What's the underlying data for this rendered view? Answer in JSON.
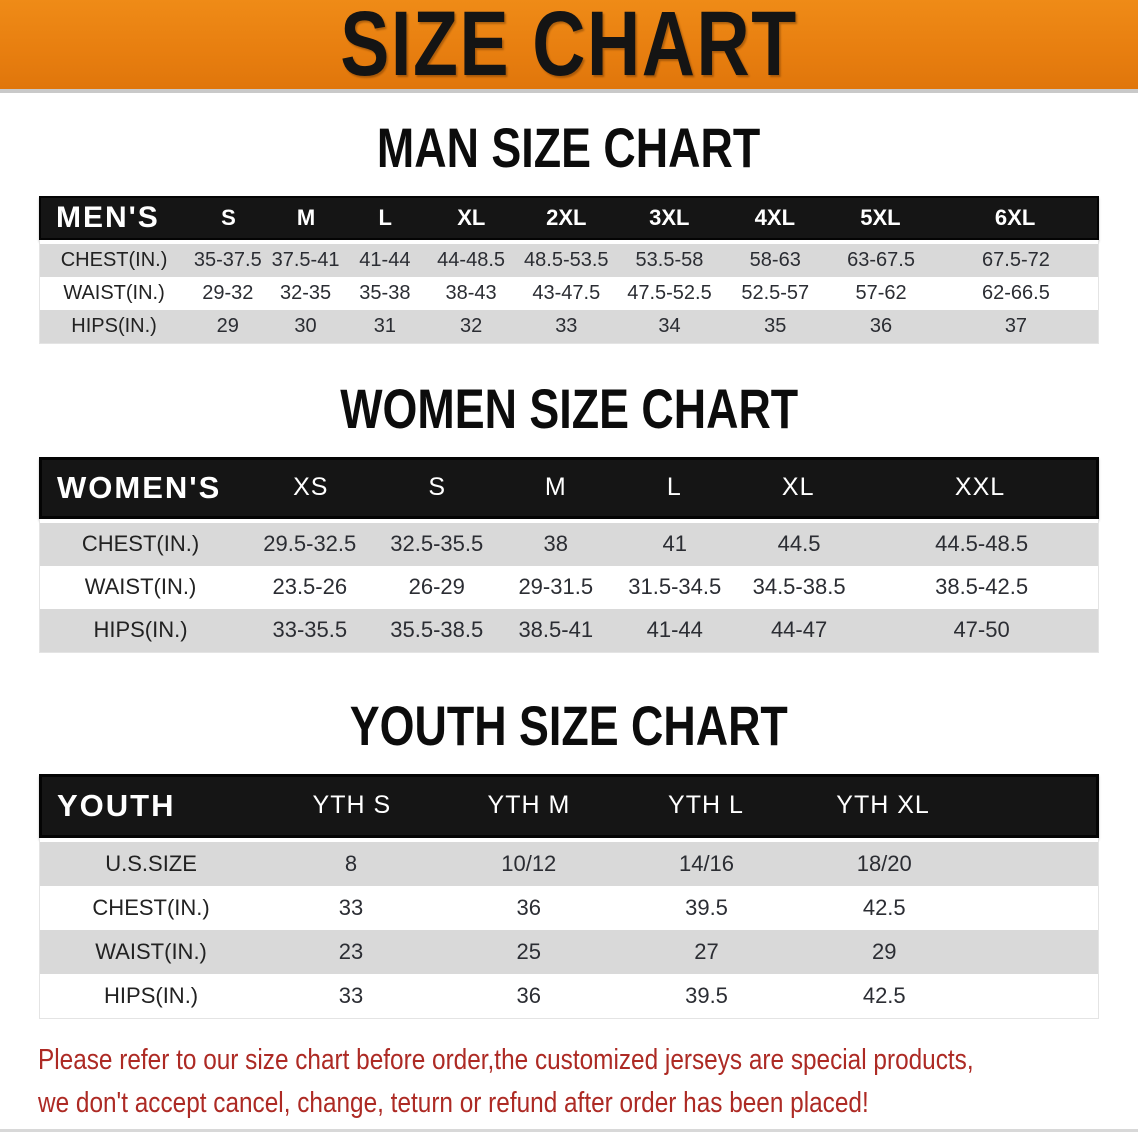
{
  "banner": {
    "title": "SIZE CHART",
    "bg_color": "#E8800F",
    "text_color": "#141414"
  },
  "colors": {
    "table_header_bg": "#151515",
    "table_header_text": "#FFFFFF",
    "row_stripe_gray": "#D9D9D9",
    "row_stripe_white": "#FFFFFF",
    "disclaimer_red": "#AD2A24"
  },
  "sections": [
    {
      "title": "MAN SIZE CHART",
      "table": {
        "label": "MEN'S",
        "columns": [
          "S",
          "M",
          "L",
          "XL",
          "2XL",
          "3XL",
          "4XL",
          "5XL",
          "6XL"
        ],
        "rows": [
          {
            "label": "CHEST(IN.)",
            "values": [
              "35-37.5",
              "37.5-41",
              "41-44",
              "44-48.5",
              "48.5-53.5",
              "53.5-58",
              "58-63",
              "63-67.5",
              "67.5-72"
            ]
          },
          {
            "label": "WAIST(IN.)",
            "values": [
              "29-32",
              "32-35",
              "35-38",
              "38-43",
              "43-47.5",
              "47.5-52.5",
              "52.5-57",
              "57-62",
              "62-66.5"
            ]
          },
          {
            "label": "HIPS(IN.)",
            "values": [
              "29",
              "30",
              "31",
              "32",
              "33",
              "34",
              "35",
              "36",
              "37"
            ]
          }
        ]
      }
    },
    {
      "title": "WOMEN SIZE CHART",
      "table": {
        "label": "WOMEN'S",
        "columns": [
          "XS",
          "S",
          "M",
          "L",
          "XL",
          "XXL"
        ],
        "rows": [
          {
            "label": "CHEST(IN.)",
            "values": [
              "29.5-32.5",
              "32.5-35.5",
              "38",
              "41",
              "44.5",
              "44.5-48.5"
            ]
          },
          {
            "label": "WAIST(IN.)",
            "values": [
              "23.5-26",
              "26-29",
              "29-31.5",
              "31.5-34.5",
              "34.5-38.5",
              "38.5-42.5"
            ]
          },
          {
            "label": "HIPS(IN.)",
            "values": [
              "33-35.5",
              "35.5-38.5",
              "38.5-41",
              "41-44",
              "44-47",
              "47-50"
            ]
          }
        ]
      }
    },
    {
      "title": "YOUTH SIZE CHART",
      "table": {
        "label": "YOUTH",
        "columns": [
          "YTH S",
          "YTH M",
          "YTH L",
          "YTH XL"
        ],
        "rows": [
          {
            "label": "U.S.SIZE",
            "values": [
              "8",
              "10/12",
              "14/16",
              "18/20"
            ]
          },
          {
            "label": "CHEST(IN.)",
            "values": [
              "33",
              "36",
              "39.5",
              "42.5"
            ]
          },
          {
            "label": "WAIST(IN.)",
            "values": [
              "23",
              "25",
              "27",
              "29"
            ]
          },
          {
            "label": "HIPS(IN.)",
            "values": [
              "33",
              "36",
              "39.5",
              "42.5"
            ]
          }
        ]
      }
    }
  ],
  "disclaimer": {
    "line1": "Please refer to our size chart before order,the customized jerseys are special products,",
    "line2": "we don't accept cancel, change, teturn or refund after order has been placed!"
  }
}
